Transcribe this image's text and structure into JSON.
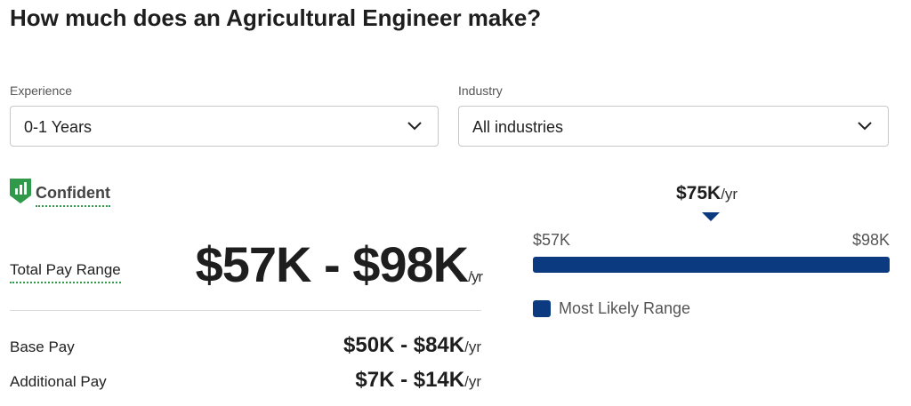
{
  "header": {
    "title": "How much does an Agricultural Engineer make?"
  },
  "filters": [
    {
      "label": "Experience",
      "value": "0-1 Years"
    },
    {
      "label": "Industry",
      "value": "All industries"
    }
  ],
  "confidence": "Confident",
  "total_pay": {
    "label": "Total Pay Range",
    "range": "$57K - $98K",
    "unit": "/yr"
  },
  "pay_rows": [
    {
      "label": "Base Pay",
      "range": "$50K - $84K",
      "unit": "/yr"
    },
    {
      "label": "Additional Pay",
      "range": "$7K - $14K",
      "unit": "/yr"
    }
  ],
  "range_bar": {
    "median": "$75K",
    "median_unit": "/yr",
    "low": "$57K",
    "high": "$98K",
    "legend": "Most Likely Range"
  }
}
